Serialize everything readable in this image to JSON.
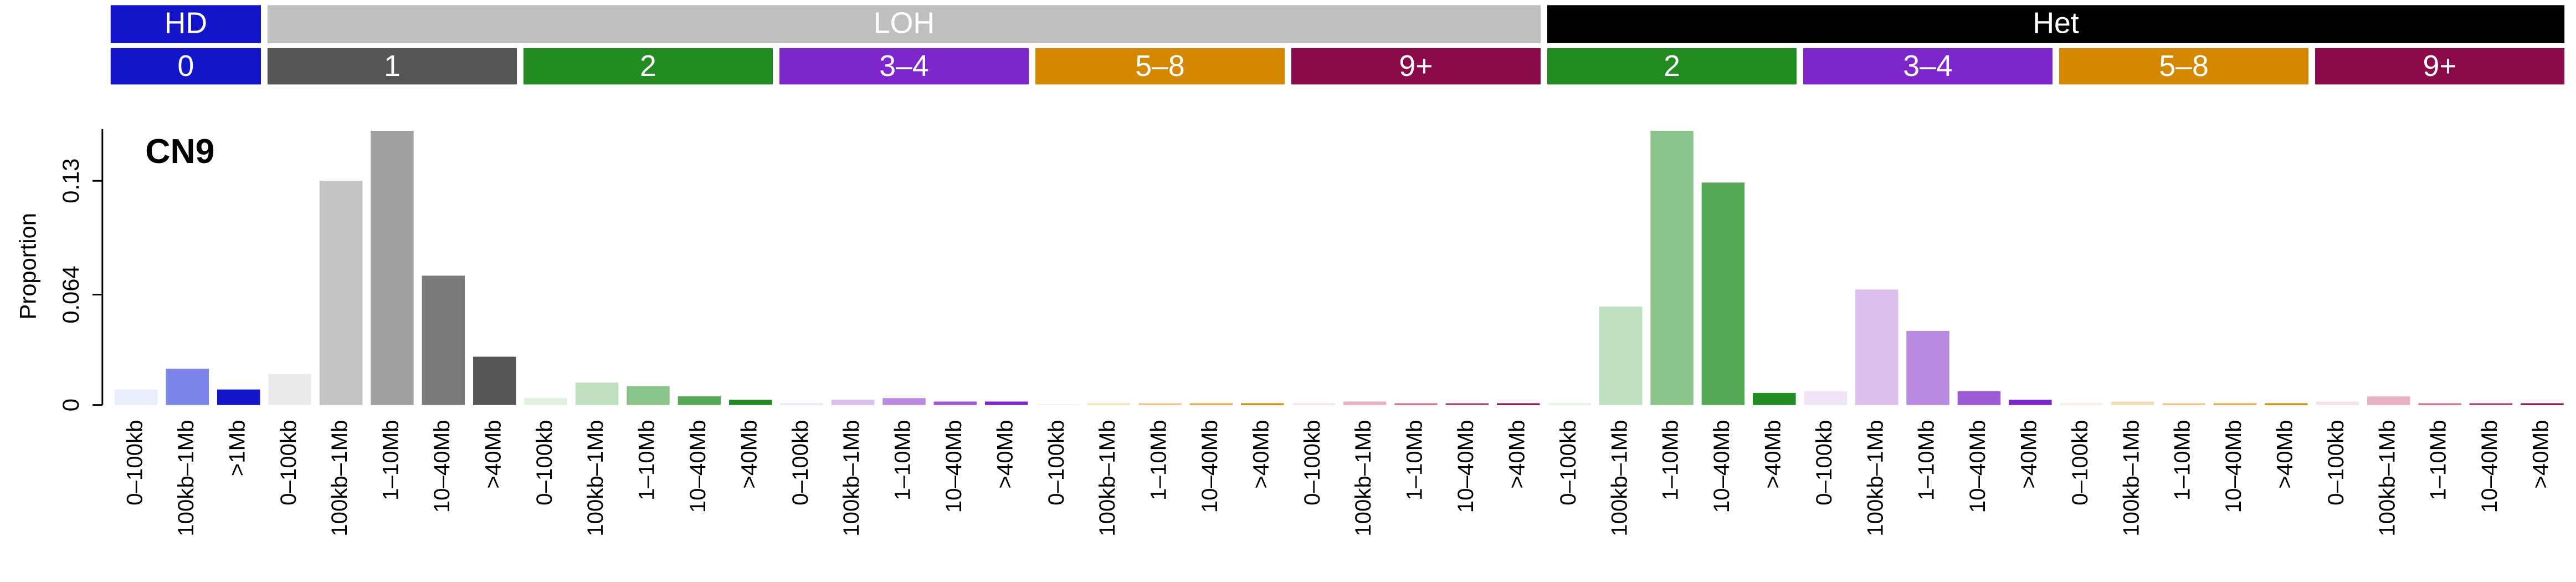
{
  "chart_data": {
    "type": "bar",
    "title": "CN9",
    "y_label": "Proportion",
    "ylim": [
      0,
      0.16
    ],
    "yticks": [
      0,
      0.064,
      0.13
    ],
    "groups": [
      {
        "name": "HD",
        "color": "#1414c8",
        "subgroups": [
          {
            "name": "0",
            "color": "#1414c8",
            "categories": [
              "0–100kb",
              "100kb–1Mb",
              ">1Mb"
            ],
            "values": [
              0.009,
              0.021,
              0.009
            ],
            "colors": [
              "#e8eefc",
              "#7b84e8",
              "#1414c8"
            ]
          }
        ]
      },
      {
        "name": "LOH",
        "color": "#bfbfbf",
        "subgroups": [
          {
            "name": "1",
            "color": "#555555",
            "categories": [
              "0–100kb",
              "100kb–1Mb",
              "1–10Mb",
              "10–40Mb",
              ">40Mb"
            ],
            "values": [
              0.018,
              0.13,
              0.159,
              0.075,
              0.028
            ],
            "colors": [
              "#ebebeb",
              "#c4c4c4",
              "#a0a0a0",
              "#7a7a7a",
              "#555555"
            ]
          },
          {
            "name": "2",
            "color": "#228b22",
            "categories": [
              "0–100kb",
              "100kb–1Mb",
              "1–10Mb",
              "10–40Mb",
              ">40Mb"
            ],
            "values": [
              0.004,
              0.013,
              0.011,
              0.005,
              0.003
            ],
            "colors": [
              "#e0f2e0",
              "#bfe0bf",
              "#8bc48b",
              "#55a855",
              "#228b22"
            ]
          },
          {
            "name": "3–4",
            "color": "#7c26cc",
            "categories": [
              "0–100kb",
              "100kb–1Mb",
              "1–10Mb",
              "10–40Mb",
              ">40Mb"
            ],
            "values": [
              0.001,
              0.003,
              0.004,
              0.002,
              0.002
            ],
            "colors": [
              "#f0e4f8",
              "#dcbfec",
              "#b98be0",
              "#9b59d6",
              "#7c26cc"
            ]
          },
          {
            "name": "5–8",
            "color": "#d48800",
            "categories": [
              "0–100kb",
              "100kb–1Mb",
              "1–10Mb",
              "10–40Mb",
              ">40Mb"
            ],
            "values": [
              0.0005,
              0.001,
              0.001,
              0.001,
              0.001
            ],
            "colors": [
              "#fbeedd",
              "#f5dcb5",
              "#edc482",
              "#e3a646",
              "#d48800"
            ]
          },
          {
            "name": "9+",
            "color": "#8b0a4a",
            "categories": [
              "0–100kb",
              "100kb–1Mb",
              "1–10Mb",
              "10–40Mb",
              ">40Mb"
            ],
            "values": [
              0.001,
              0.002,
              0.001,
              0.001,
              0.001
            ],
            "colors": [
              "#f8e1ea",
              "#e8b0c4",
              "#c8708f",
              "#a83a62",
              "#8b0a4a"
            ]
          }
        ]
      },
      {
        "name": "Het",
        "color": "#000000",
        "subgroups": [
          {
            "name": "2",
            "color": "#228b22",
            "categories": [
              "0–100kb",
              "100kb–1Mb",
              "1–10Mb",
              "10–40Mb",
              ">40Mb"
            ],
            "values": [
              0.001,
              0.057,
              0.159,
              0.129,
              0.007
            ],
            "colors": [
              "#e0f2e0",
              "#bfe0bf",
              "#8bc48b",
              "#55a855",
              "#228b22"
            ]
          },
          {
            "name": "3–4",
            "color": "#7c26cc",
            "categories": [
              "0–100kb",
              "100kb–1Mb",
              "1–10Mb",
              "10–40Mb",
              ">40Mb"
            ],
            "values": [
              0.008,
              0.067,
              0.043,
              0.008,
              0.003
            ],
            "colors": [
              "#f0e4f8",
              "#dcbfec",
              "#b98be0",
              "#9b59d6",
              "#7c26cc"
            ]
          },
          {
            "name": "5–8",
            "color": "#d48800",
            "categories": [
              "0–100kb",
              "100kb–1Mb",
              "1–10Mb",
              "10–40Mb",
              ">40Mb"
            ],
            "values": [
              0.001,
              0.002,
              0.001,
              0.001,
              0.001
            ],
            "colors": [
              "#fbeedd",
              "#f5dcb5",
              "#edc482",
              "#e3a646",
              "#d48800"
            ]
          },
          {
            "name": "9+",
            "color": "#8b0a4a",
            "categories": [
              "0–100kb",
              "100kb–1Mb",
              "1–10Mb",
              "10–40Mb",
              ">40Mb"
            ],
            "values": [
              0.002,
              0.005,
              0.001,
              0.001,
              0.001
            ],
            "colors": [
              "#f8e1ea",
              "#e8b0c4",
              "#c8708f",
              "#a83a62",
              "#8b0a4a"
            ]
          }
        ]
      }
    ]
  }
}
